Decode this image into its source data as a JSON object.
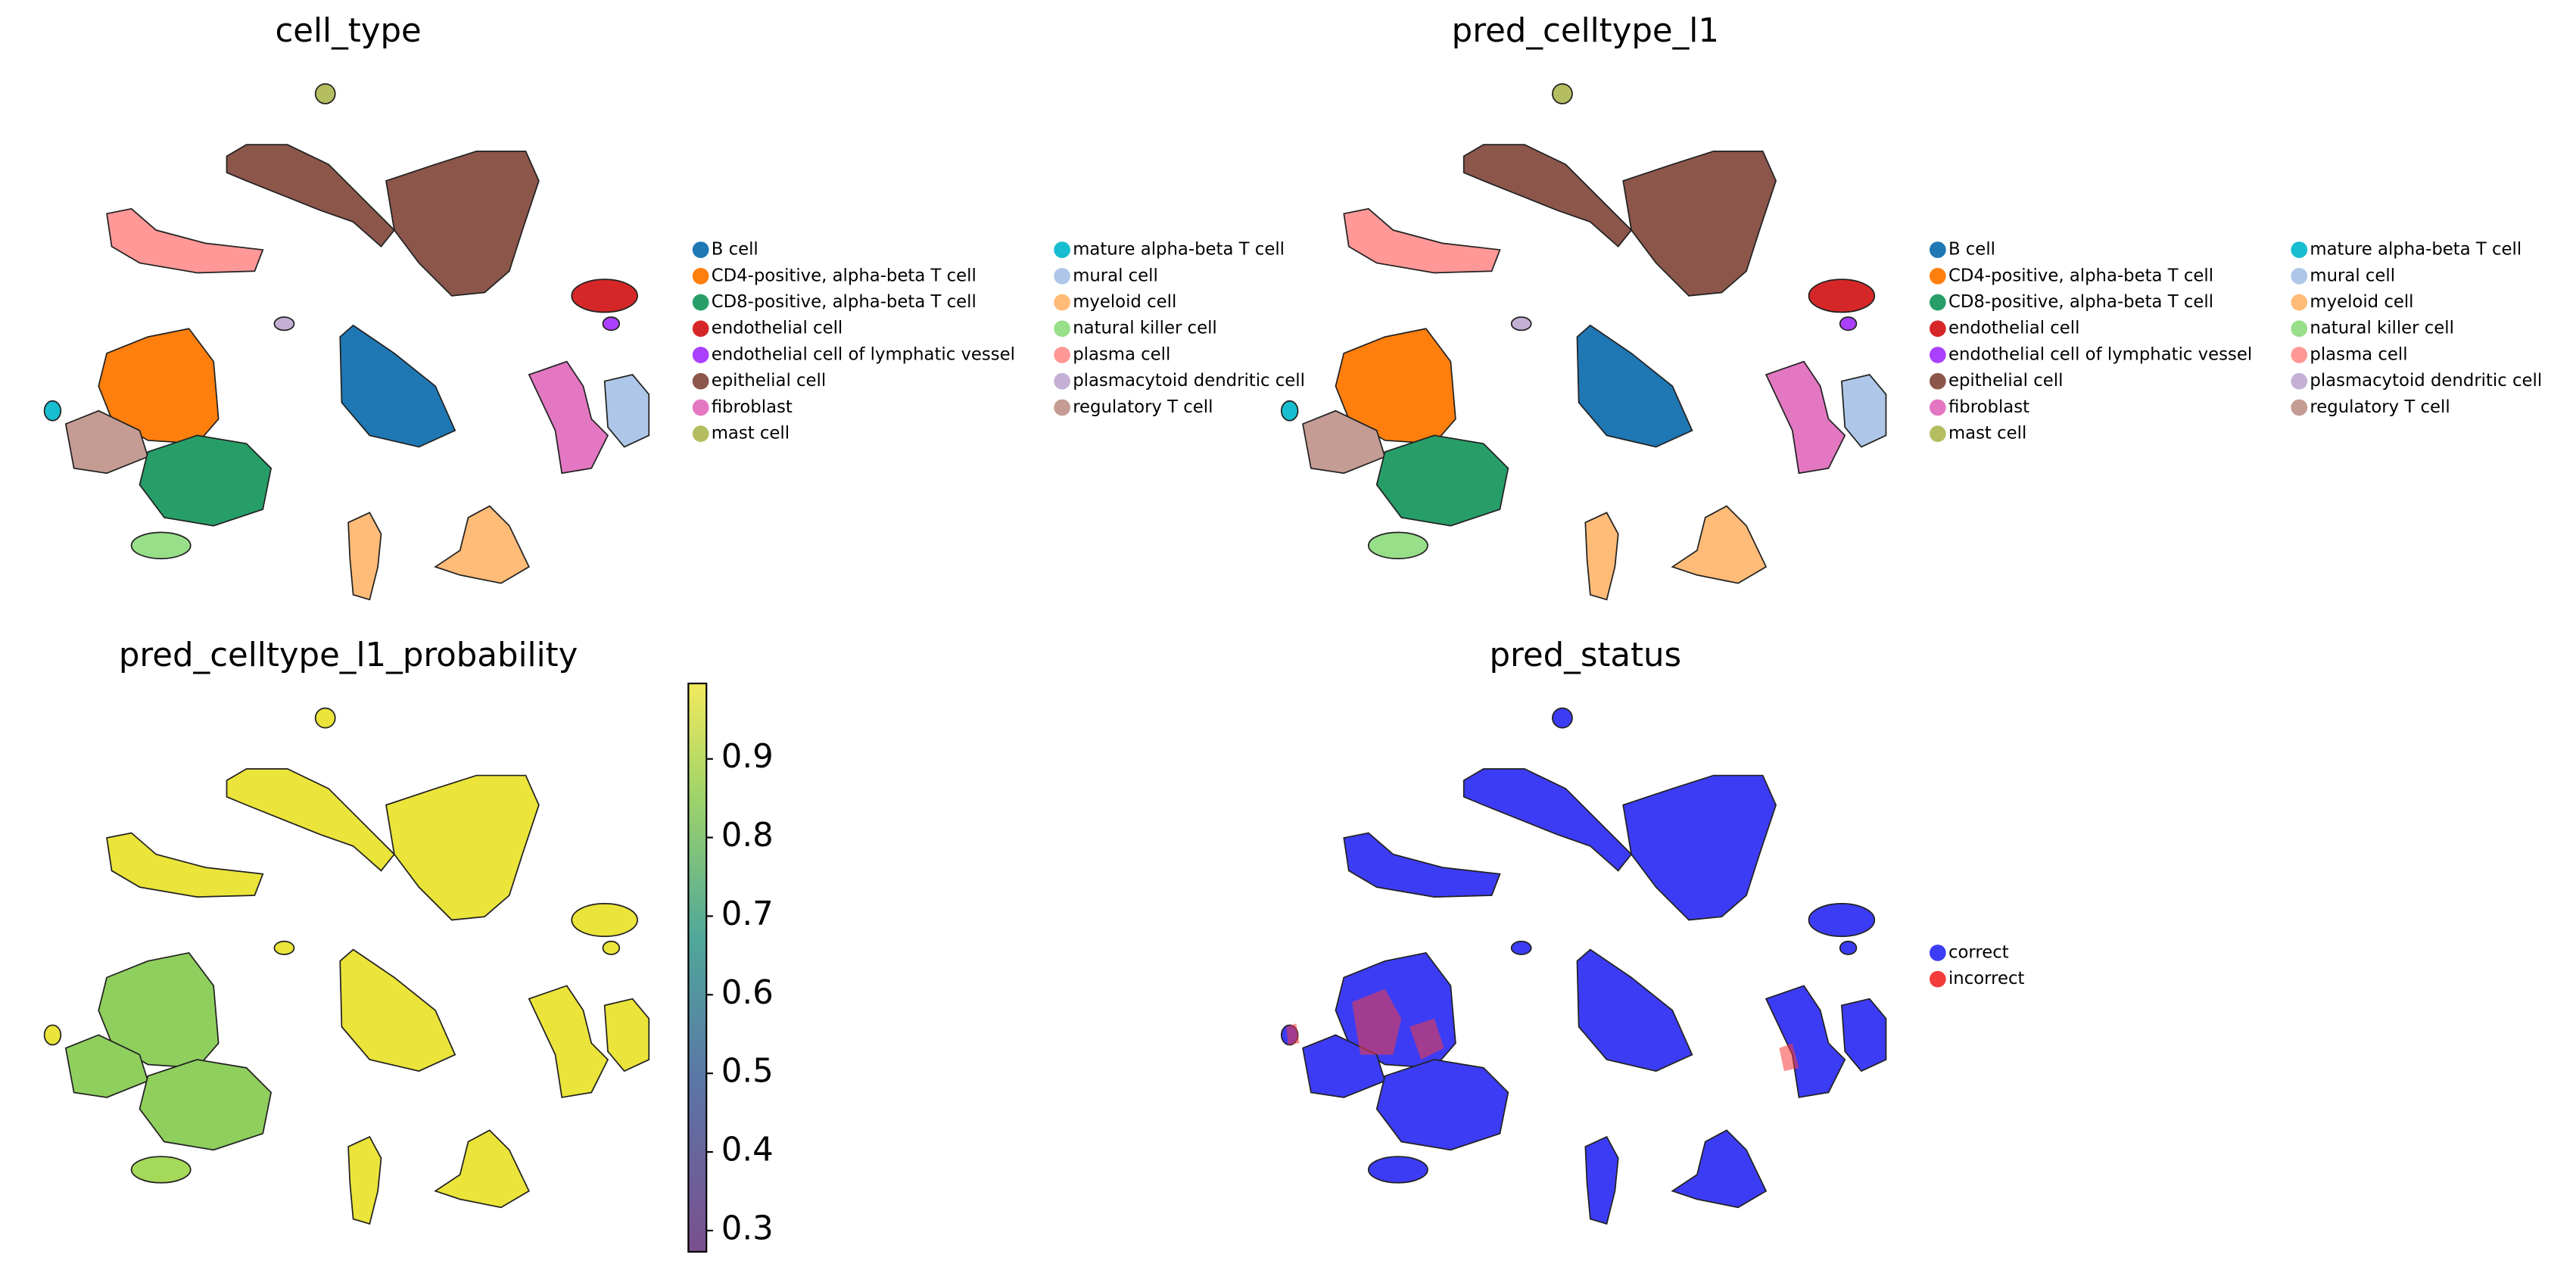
{
  "chart_data": [
    {
      "type": "scatter",
      "title": "cell_type",
      "legend": {
        "categories": [
          "B cell",
          "CD4-positive, alpha-beta T cell",
          "CD8-positive, alpha-beta T cell",
          "endothelial cell",
          "endothelial cell of lymphatic vessel",
          "epithelial cell",
          "fibroblast",
          "mast cell",
          "mature alpha-beta T cell",
          "mural cell",
          "myeloid cell",
          "natural killer cell",
          "plasma cell",
          "plasmacytoid dendritic cell",
          "regulatory T cell"
        ],
        "colors": [
          "#1f77b4",
          "#ff7f0e",
          "#279e68",
          "#d62728",
          "#aa40fc",
          "#8c564b",
          "#e377c2",
          "#b5bd61",
          "#17becf",
          "#aec7e8",
          "#ffbb78",
          "#98df8a",
          "#ff9896",
          "#c5b0d5",
          "#c49c94"
        ]
      }
    },
    {
      "type": "scatter",
      "title": "pred_celltype_l1",
      "legend": {
        "categories": [
          "B cell",
          "CD4-positive, alpha-beta T cell",
          "CD8-positive, alpha-beta T cell",
          "endothelial cell",
          "endothelial cell of lymphatic vessel",
          "epithelial cell",
          "fibroblast",
          "mast cell",
          "mature alpha-beta T cell",
          "mural cell",
          "myeloid cell",
          "natural killer cell",
          "plasma cell",
          "plasmacytoid dendritic cell",
          "regulatory T cell"
        ],
        "colors": [
          "#1f77b4",
          "#ff7f0e",
          "#279e68",
          "#d62728",
          "#aa40fc",
          "#8c564b",
          "#e377c2",
          "#b5bd61",
          "#17becf",
          "#aec7e8",
          "#ffbb78",
          "#98df8a",
          "#ff9896",
          "#c5b0d5",
          "#c49c94"
        ]
      }
    },
    {
      "type": "scatter",
      "title": "pred_celltype_l1_probability",
      "colorbar": {
        "ylim": [
          0.273,
          0.996
        ],
        "yticks": [
          0.3,
          0.4,
          0.5,
          0.6,
          0.7,
          0.8,
          0.9
        ]
      }
    },
    {
      "type": "scatter",
      "title": "pred_status",
      "legend": {
        "categories": [
          "correct",
          "incorrect"
        ],
        "colors": [
          "#3c3cf5",
          "#f53c3c"
        ]
      }
    }
  ]
}
